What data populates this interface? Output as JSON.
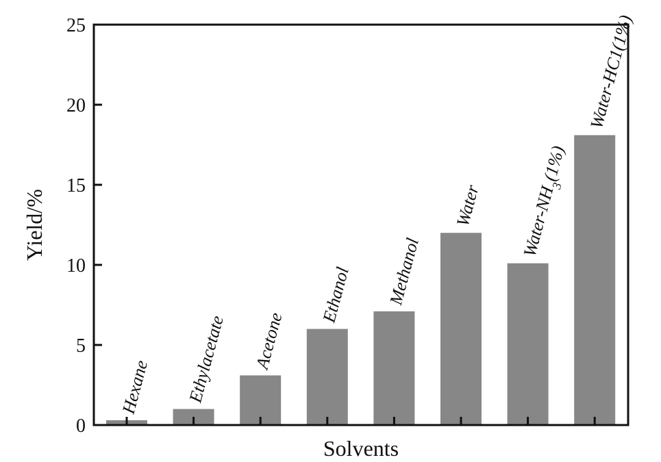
{
  "chart_data": {
    "type": "bar",
    "title": "",
    "xlabel": "Solvents",
    "ylabel": "Yield/%",
    "ylim": [
      0,
      25
    ],
    "yticks": [
      0,
      5,
      10,
      15,
      20,
      25
    ],
    "grid": false,
    "categories": [
      {
        "name": "Hexane",
        "sub": "",
        "post": ""
      },
      {
        "name": "Ethylacetate",
        "sub": "",
        "post": ""
      },
      {
        "name": "Acetone",
        "sub": "",
        "post": ""
      },
      {
        "name": "Ethanol",
        "sub": "",
        "post": ""
      },
      {
        "name": "Methanol",
        "sub": "",
        "post": ""
      },
      {
        "name": "Water",
        "sub": "",
        "post": ""
      },
      {
        "name": "Water-NH",
        "sub": "3",
        "post": "(1%)"
      },
      {
        "name": "Water-HC1(1%)",
        "sub": "",
        "post": ""
      }
    ],
    "values": [
      0.3,
      1.0,
      3.1,
      6.0,
      7.1,
      12.0,
      10.1,
      18.1
    ],
    "colors": {
      "bar": "#878787",
      "axis": "#111111"
    }
  }
}
